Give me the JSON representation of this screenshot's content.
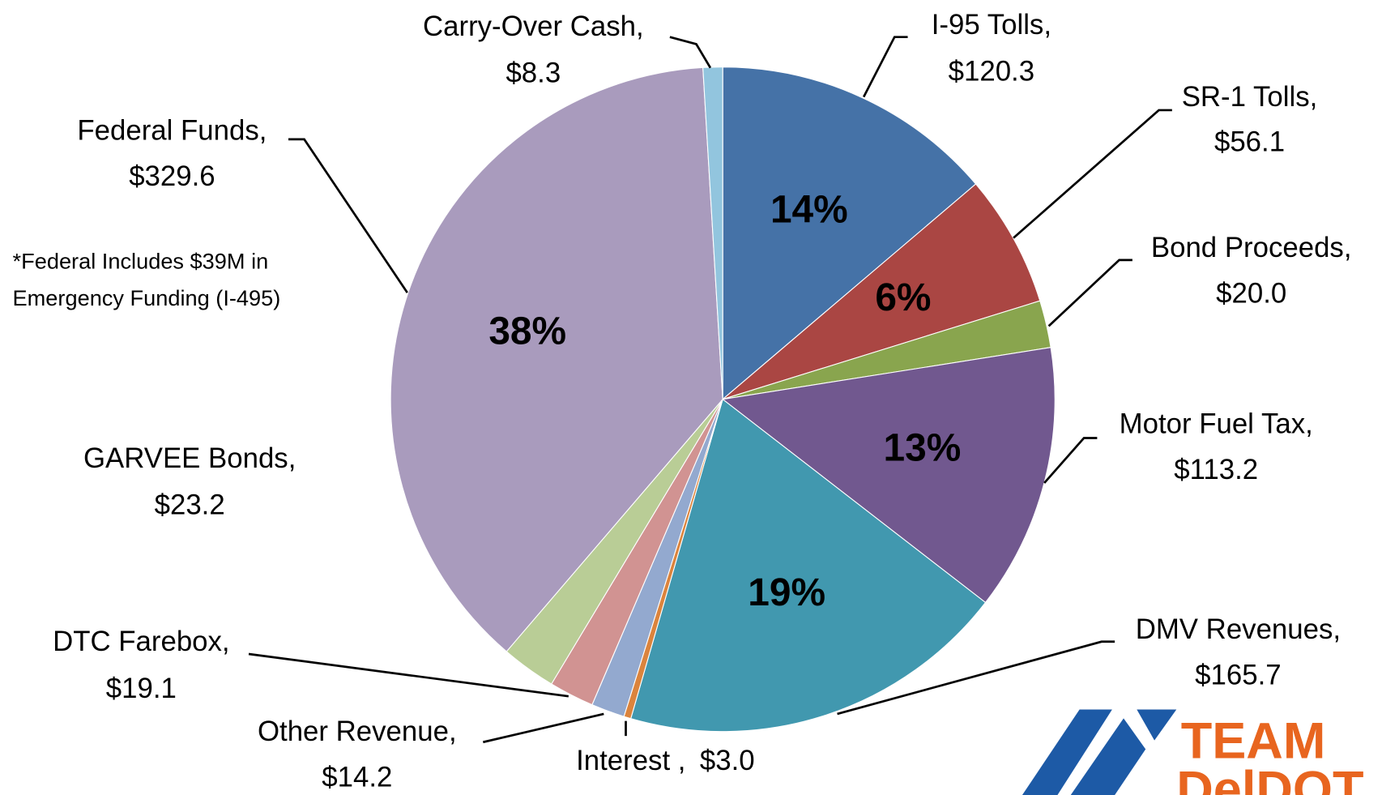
{
  "chart_data": {
    "type": "pie",
    "categories": [
      "I-95 Tolls,",
      "SR-1 Tolls,",
      "Bond Proceeds,",
      "Motor Fuel Tax,",
      "DMV Revenues,",
      "Interest ,",
      "Other Revenue,",
      "DTC Farebox,",
      "GARVEE Bonds,",
      "Federal Funds,",
      "Carry-Over Cash,"
    ],
    "values": [
      120.3,
      56.1,
      20.0,
      113.2,
      165.7,
      3.0,
      14.2,
      19.1,
      23.2,
      329.6,
      8.3
    ],
    "value_labels": [
      "$120.3",
      "$56.1",
      "$20.0",
      "$113.2",
      "$165.7",
      "$3.0",
      "$14.2",
      "$19.1",
      "$23.2",
      "$329.6",
      "$8.3"
    ],
    "percent_labels": [
      "14%",
      "6%",
      null,
      "13%",
      "19%",
      null,
      null,
      null,
      null,
      "38%",
      null
    ],
    "colors": [
      "#4572a7",
      "#aa4643",
      "#89a54e",
      "#71588f",
      "#4198af",
      "#db843d",
      "#93a9cf",
      "#d19392",
      "#b9cd96",
      "#a99bbd",
      "#92c5de"
    ],
    "annotation": [
      "*Federal Includes $39M in",
      "Emergency Funding (I-495)"
    ]
  },
  "logo": {
    "text": [
      "TEAM",
      "DelDOT"
    ]
  }
}
